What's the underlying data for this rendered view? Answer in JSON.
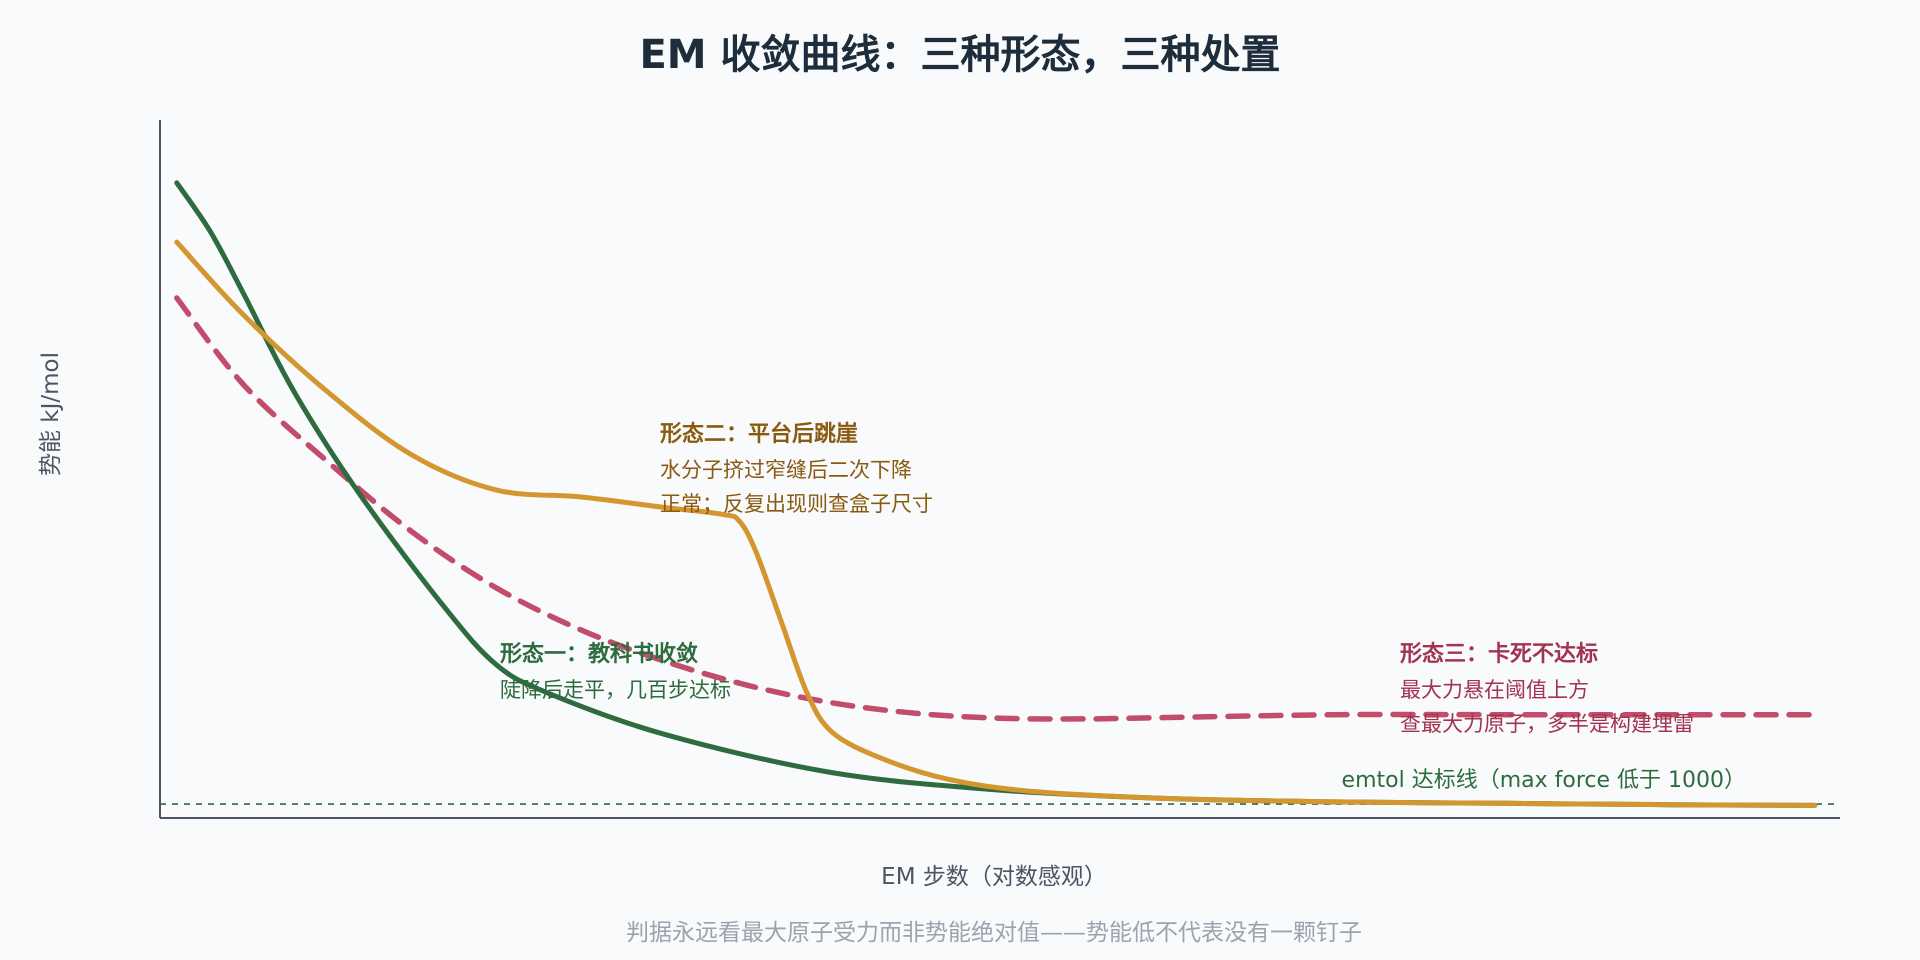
{
  "chart_data": {
    "type": "line",
    "title": "EM 收敛曲线：三种形态，三种处置",
    "xlabel": "EM 步数（对数感观）",
    "ylabel": "势能 kJ/mol",
    "xlim": [
      0,
      100
    ],
    "ylim": [
      0,
      100
    ],
    "x_log_scale_feel": true,
    "grid": false,
    "ticks_shown": false,
    "legend": "none",
    "series": [
      {
        "color": "#2e6b3f",
        "style": "solid",
        "points": [
          [
            1,
            91
          ],
          [
            3,
            84
          ],
          [
            5,
            75
          ],
          [
            8,
            61
          ],
          [
            12,
            46
          ],
          [
            17,
            30
          ],
          [
            20,
            22
          ],
          [
            23,
            18
          ],
          [
            30,
            12
          ],
          [
            40,
            6.5
          ],
          [
            50,
            4
          ],
          [
            60,
            2.8
          ],
          [
            70,
            2.3
          ],
          [
            80,
            2.1
          ],
          [
            90,
            1.9
          ],
          [
            98.5,
            1.8
          ]
        ]
      },
      {
        "color": "#d4962f",
        "style": "solid",
        "points": [
          [
            1,
            82.5
          ],
          [
            5,
            72
          ],
          [
            10,
            61
          ],
          [
            15,
            52
          ],
          [
            20,
            47
          ],
          [
            25,
            46
          ],
          [
            30,
            44.5
          ],
          [
            33.5,
            43.5
          ],
          [
            34.5,
            42.5
          ],
          [
            35.5,
            38
          ],
          [
            37,
            28
          ],
          [
            38.5,
            18
          ],
          [
            40,
            12.3
          ],
          [
            43,
            8.5
          ],
          [
            47,
            5.5
          ],
          [
            52,
            3.8
          ],
          [
            60,
            2.8
          ],
          [
            70,
            2.3
          ],
          [
            80,
            2.1
          ],
          [
            90,
            1.9
          ],
          [
            98.5,
            1.8
          ]
        ]
      },
      {
        "color": "#c24d6b",
        "style": "dashed",
        "points": [
          [
            1,
            74.5
          ],
          [
            5,
            62
          ],
          [
            10,
            51
          ],
          [
            15,
            41
          ],
          [
            20,
            33
          ],
          [
            25,
            27
          ],
          [
            30,
            22.5
          ],
          [
            35,
            19
          ],
          [
            40,
            16.5
          ],
          [
            45,
            15
          ],
          [
            50,
            14.3
          ],
          [
            55,
            14.2
          ],
          [
            60,
            14.4
          ],
          [
            70,
            14.8
          ],
          [
            80,
            14.8
          ],
          [
            90,
            14.8
          ],
          [
            98.5,
            14.8
          ]
        ]
      }
    ],
    "threshold": {
      "y": 2,
      "color": "#2e6b3f",
      "style": "dashed",
      "label": "emtol 达标线（max force 低于 1000）"
    },
    "annotations": [
      {
        "color": "#2e6b3f",
        "title": "形态一：教科书收敛",
        "lines": [
          "陡降后走平，几百步达标"
        ]
      },
      {
        "color": "#8a5a10",
        "title": "形态二：平台后跳崖",
        "lines": [
          "水分子挤过窄缝后二次下降",
          "正常；反复出现则查盒子尺寸"
        ]
      },
      {
        "color": "#a33451",
        "title": "形态三：卡死不达标",
        "lines": [
          "最大力悬在阈值上方",
          "查最大力原子，多半是构建埋雷"
        ]
      }
    ],
    "footnote": "判据永远看最大原子受力而非势能绝对值——势能低不代表没有一颗钉子"
  }
}
